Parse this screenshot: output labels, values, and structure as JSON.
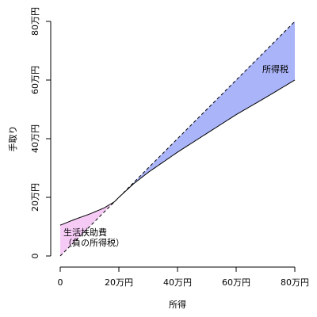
{
  "chart_data": {
    "type": "area",
    "title": "",
    "xlabel": "所得",
    "ylabel": "手取り",
    "xlim": [
      0,
      80
    ],
    "ylim": [
      0,
      80
    ],
    "x_ticks": [
      {
        "value": 0,
        "label": "0"
      },
      {
        "value": 20,
        "label": "20万円"
      },
      {
        "value": 40,
        "label": "40万円"
      },
      {
        "value": 60,
        "label": "60万円"
      },
      {
        "value": 80,
        "label": "80万円"
      }
    ],
    "y_ticks": [
      {
        "value": 0,
        "label": "0"
      },
      {
        "value": 20,
        "label": "20万円"
      },
      {
        "value": 40,
        "label": "40万円"
      },
      {
        "value": 60,
        "label": "60万円"
      },
      {
        "value": 80,
        "label": "80万円"
      }
    ],
    "grid": false,
    "series": [
      {
        "style": "dashed",
        "x": [
          0,
          80
        ],
        "y": [
          0,
          80
        ]
      },
      {
        "style": "solid",
        "x": [
          0,
          5,
          10,
          15,
          18.5,
          20,
          25,
          30,
          40,
          50,
          60,
          70,
          80
        ],
        "y": [
          10.5,
          12.5,
          14.3,
          16.4,
          18.5,
          20,
          24.6,
          28.5,
          35.4,
          41.8,
          48.2,
          54.0,
          60.0
        ]
      }
    ],
    "regions": [
      {
        "label": "生活扶助費\n（負の所得税）",
        "color": "#f5cbf5",
        "x_range": [
          0,
          18.5
        ]
      },
      {
        "label": "所得税",
        "color": "#aab4f8",
        "x_range": [
          18.5,
          80
        ]
      }
    ],
    "colors": {
      "line": "#000000",
      "subsidy_fill": "#f5cbf5",
      "tax_fill": "#aab4f8"
    }
  }
}
